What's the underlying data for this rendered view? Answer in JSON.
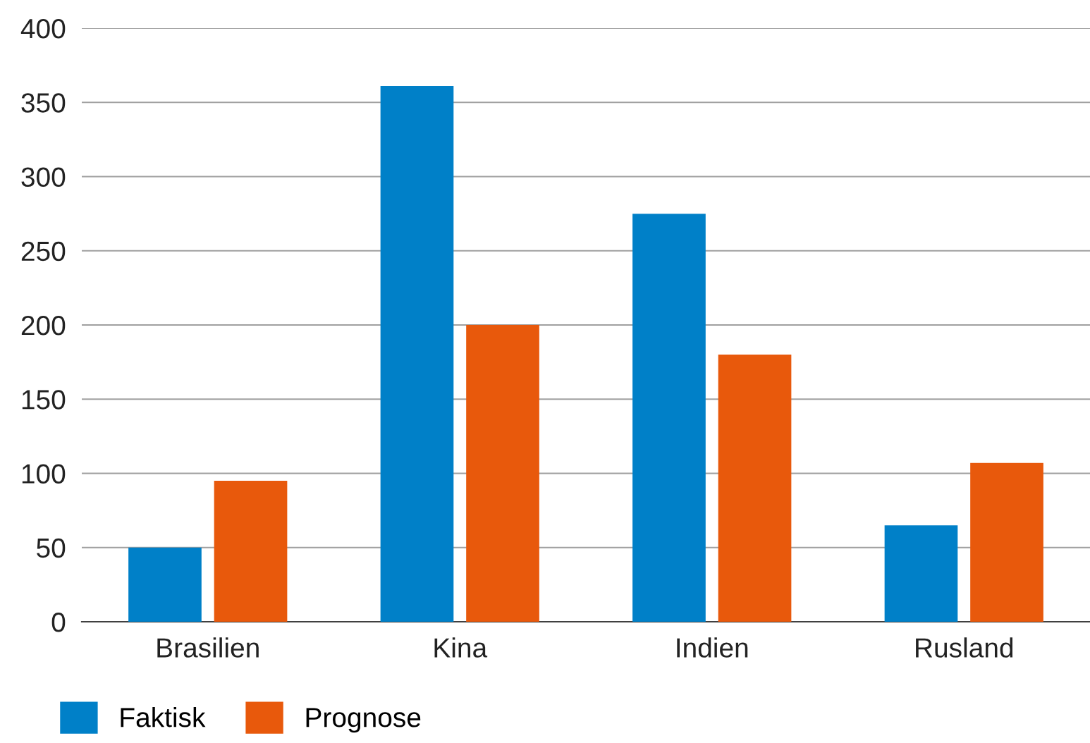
{
  "chart_data": {
    "type": "bar",
    "categories": [
      "Brasilien",
      "Kina",
      "Indien",
      "Rusland"
    ],
    "series": [
      {
        "name": "Faktisk",
        "color": "#0080c8",
        "values": [
          50,
          361,
          275,
          65
        ]
      },
      {
        "name": "Prognose",
        "color": "#e8590c",
        "values": [
          95,
          200,
          180,
          107
        ]
      }
    ],
    "ylim": [
      0,
      400
    ],
    "yticks": [
      0,
      50,
      100,
      150,
      200,
      250,
      300,
      350,
      400
    ],
    "grid": "y",
    "legend": "bottom left"
  }
}
